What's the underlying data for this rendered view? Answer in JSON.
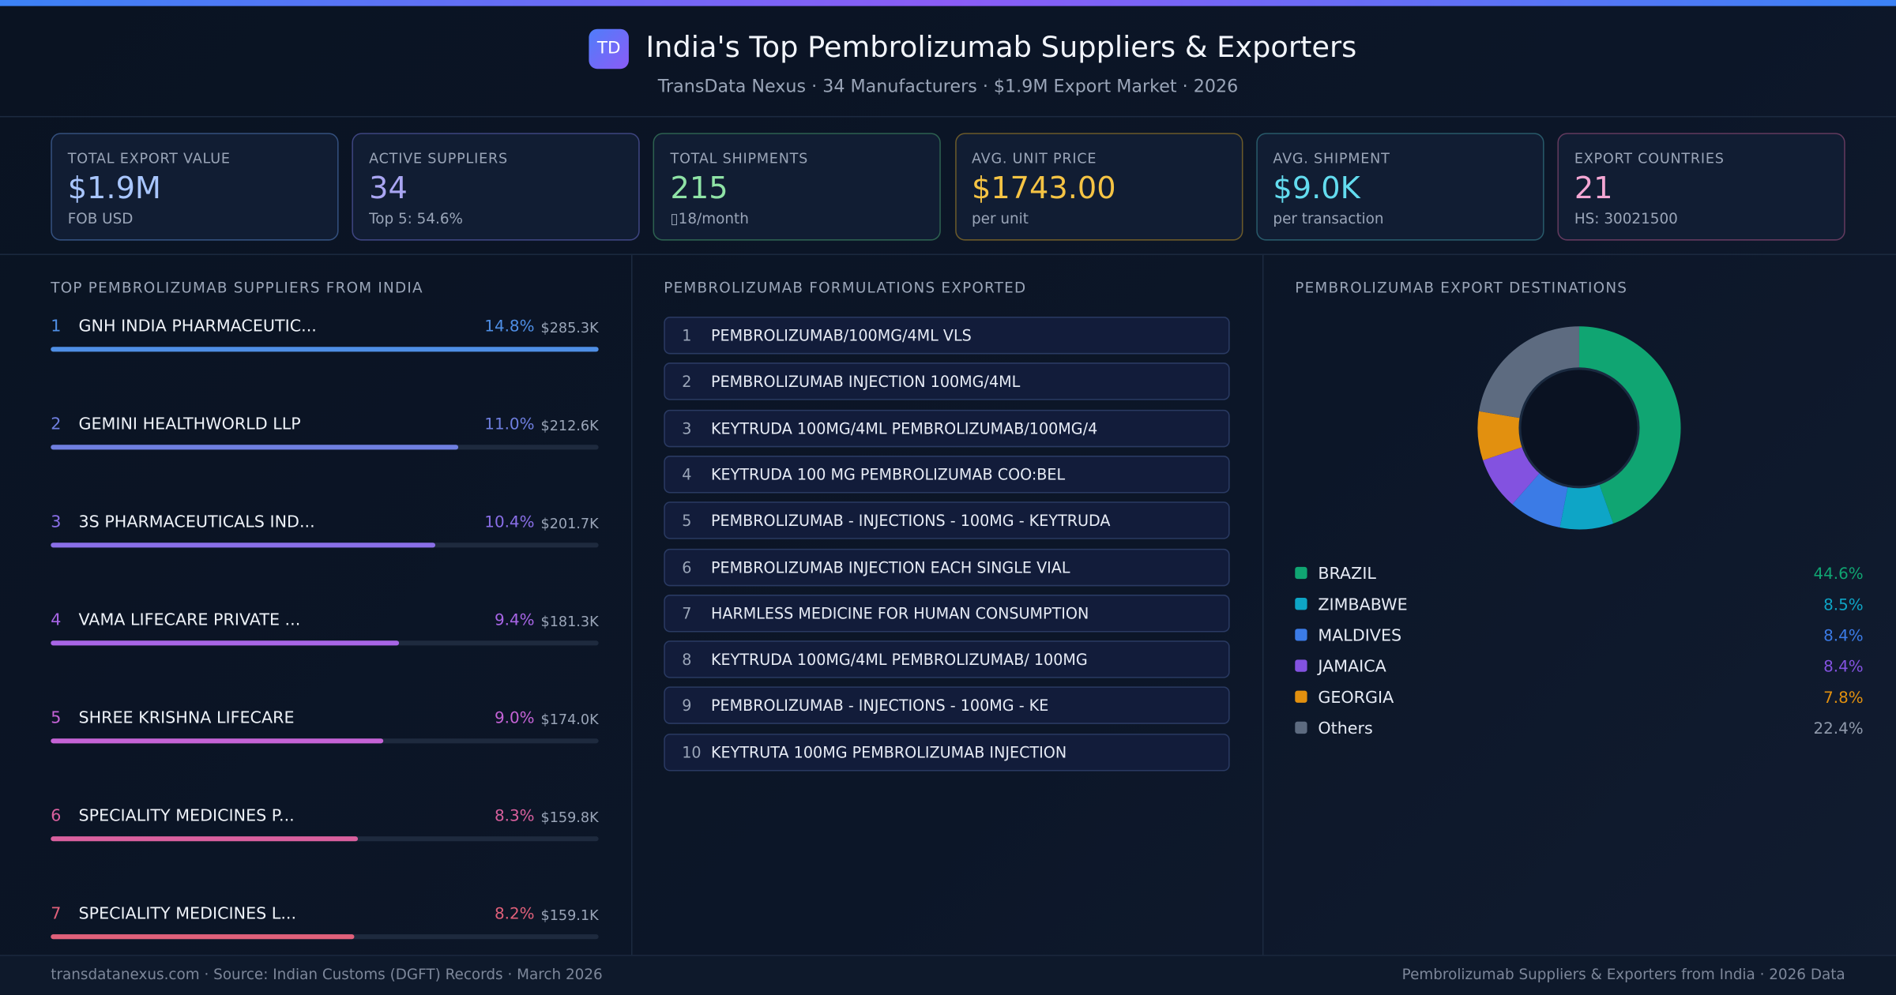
{
  "header": {
    "logo": "TD",
    "title": "India's Top Pembrolizumab Suppliers & Exporters",
    "subtitle": "TransData Nexus · 34 Manufacturers · $1.9M Export Market · 2026"
  },
  "kpis": [
    {
      "label": "TOTAL EXPORT VALUE",
      "value": "$1.9M",
      "sub": "FOB USD",
      "color": "#a9c6ff",
      "border": "#34507e"
    },
    {
      "label": "ACTIVE SUPPLIERS",
      "value": "34",
      "sub": "Top 5: 54.6%",
      "color": "#aaa6f3",
      "border": "#3e4580"
    },
    {
      "label": "TOTAL SHIPMENTS",
      "value": "215",
      "sub": "▯18/month",
      "color": "#8fe3a6",
      "border": "#2d6150"
    },
    {
      "label": "AVG. UNIT PRICE",
      "value": "$1743.00",
      "sub": "per unit",
      "color": "#f6c444",
      "border": "#6b5a2a"
    },
    {
      "label": "AVG. SHIPMENT",
      "value": "$9.0K",
      "sub": "per transaction",
      "color": "#63dcef",
      "border": "#285a6a"
    },
    {
      "label": "EXPORT COUNTRIES",
      "value": "21",
      "sub": "HS: 30021500",
      "color": "#f4a6d3",
      "border": "#633a5e"
    }
  ],
  "suppliers": {
    "title": "TOP PEMBROLIZUMAB SUPPLIERS FROM INDIA",
    "items": [
      {
        "rank": 1,
        "name": "GNH INDIA PHARMACEUTIC...",
        "share": 14.8,
        "share_label": "14.8%",
        "value": "$285.3K",
        "color": "#4f8fe6"
      },
      {
        "rank": 2,
        "name": "GEMINI HEALTHWORLD LLP",
        "share": 11.0,
        "share_label": "11.0%",
        "value": "$212.6K",
        "color": "#6f7fe0"
      },
      {
        "rank": 3,
        "name": "3S PHARMACEUTICALS IND...",
        "share": 10.4,
        "share_label": "10.4%",
        "value": "$201.7K",
        "color": "#8a6fe8"
      },
      {
        "rank": 4,
        "name": "VAMA LIFECARE PRIVATE ...",
        "share": 9.4,
        "share_label": "9.4%",
        "value": "$181.3K",
        "color": "#a865e6"
      },
      {
        "rank": 5,
        "name": "SHREE KRISHNA LIFECARE",
        "share": 9.0,
        "share_label": "9.0%",
        "value": "$174.0K",
        "color": "#c563d6"
      },
      {
        "rank": 6,
        "name": "SPECIALITY MEDICINES P...",
        "share": 8.3,
        "share_label": "8.3%",
        "value": "$159.8K",
        "color": "#d9609e"
      },
      {
        "rank": 7,
        "name": "SPECIALITY MEDICINES L...",
        "share": 8.2,
        "share_label": "8.2%",
        "value": "$159.1K",
        "color": "#e0607a"
      }
    ]
  },
  "formulations": {
    "title": "PEMBROLIZUMAB FORMULATIONS EXPORTED",
    "items": [
      {
        "rank": 1,
        "name": "PEMBROLIZUMAB/100MG/4ML VLS"
      },
      {
        "rank": 2,
        "name": "PEMBROLIZUMAB INJECTION 100MG/4ML"
      },
      {
        "rank": 3,
        "name": "KEYTRUDA 100MG/4ML PEMBROLIZUMAB/100MG/4"
      },
      {
        "rank": 4,
        "name": "KEYTRUDA 100 MG PEMBROLIZUMAB COO:BEL"
      },
      {
        "rank": 5,
        "name": "PEMBROLIZUMAB - INJECTIONS - 100MG - KEYTRUDA"
      },
      {
        "rank": 6,
        "name": "PEMBROLIZUMAB INJECTION EACH SINGLE VIAL"
      },
      {
        "rank": 7,
        "name": "HARMLESS MEDICINE FOR HUMAN CONSUMPTION"
      },
      {
        "rank": 8,
        "name": "KEYTRUDA 100MG/4ML PEMBROLIZUMAB/ 100MG"
      },
      {
        "rank": 9,
        "name": "PEMBROLIZUMAB - INJECTIONS - 100MG - KE"
      },
      {
        "rank": 10,
        "name": "KEYTRUTA 100MG PEMBROLIZUMAB INJECTION"
      }
    ]
  },
  "chart_data": {
    "type": "pie",
    "donut": true,
    "title": "PEMBROLIZUMAB EXPORT DESTINATIONS",
    "categories": [
      "BRAZIL",
      "ZIMBABWE",
      "MALDIVES",
      "JAMAICA",
      "GEORGIA",
      "Others"
    ],
    "values": [
      44.6,
      8.5,
      8.4,
      8.4,
      7.8,
      22.4
    ],
    "value_labels": [
      "44.6%",
      "8.5%",
      "8.4%",
      "8.4%",
      "7.8%",
      "22.4%"
    ],
    "colors": [
      "#10a572",
      "#0ea5c6",
      "#3b7be6",
      "#8352e0",
      "#e2900f",
      "#5d6b80"
    ]
  },
  "footer": {
    "left": "transdatanexus.com · Source: Indian Customs (DGFT) Records · March 2026",
    "right": "Pembrolizumab Suppliers & Exporters from India · 2026 Data"
  }
}
